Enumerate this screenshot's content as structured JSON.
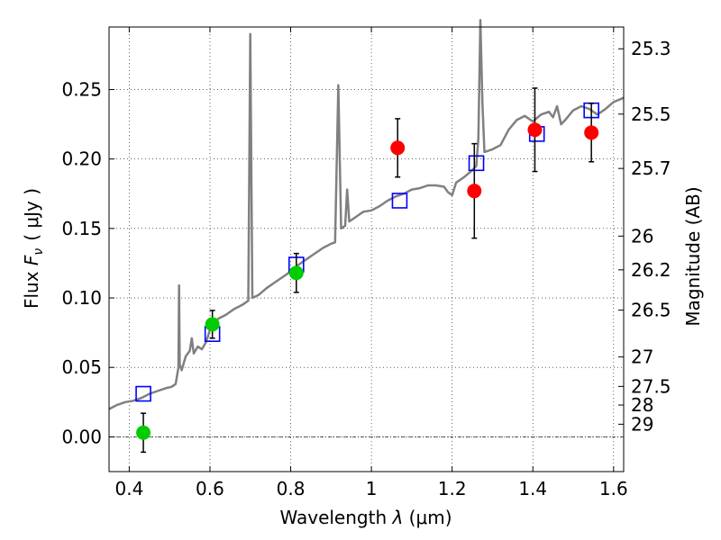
{
  "chart_data": {
    "type": "scatter",
    "xlabel_text": "Wavelength ",
    "xlabel_symbol": "λ",
    "xlabel_unit": " (μm)",
    "ylabel_text": "Flux ",
    "ylabel_symbol": "F",
    "ylabel_sub": "ν",
    "ylabel_unit": "( μJy )",
    "y2label": "Magnitude (AB)",
    "xlim": [
      0.35,
      1.625
    ],
    "ylim": [
      -0.025,
      0.295
    ],
    "x_ticks": [
      {
        "value": 0.4,
        "label": "0.4"
      },
      {
        "value": 0.6,
        "label": "0.6"
      },
      {
        "value": 0.8,
        "label": "0.8"
      },
      {
        "value": 1.0,
        "label": "1"
      },
      {
        "value": 1.2,
        "label": "1.2"
      },
      {
        "value": 1.4,
        "label": "1.4"
      },
      {
        "value": 1.6,
        "label": "1.6"
      }
    ],
    "y_ticks": [
      {
        "value": 0.0,
        "label": "0.00"
      },
      {
        "value": 0.05,
        "label": "0.05"
      },
      {
        "value": 0.1,
        "label": "0.10"
      },
      {
        "value": 0.15,
        "label": "0.15"
      },
      {
        "value": 0.2,
        "label": "0.20"
      },
      {
        "value": 0.25,
        "label": "0.25"
      }
    ],
    "y2_ticks": [
      {
        "flux": 0.2793,
        "label": "25.3"
      },
      {
        "flux": 0.2323,
        "label": "25.5"
      },
      {
        "flux": 0.1932,
        "label": "25.7"
      },
      {
        "flux": 0.1445,
        "label": "26"
      },
      {
        "flux": 0.1202,
        "label": "26.2"
      },
      {
        "flux": 0.0912,
        "label": "26.5"
      },
      {
        "flux": 0.0575,
        "label": "27"
      },
      {
        "flux": 0.0363,
        "label": "27.5"
      },
      {
        "flux": 0.0229,
        "label": "28"
      },
      {
        "flux": 0.0091,
        "label": "29"
      }
    ],
    "model_spectrum": {
      "color": "#808080",
      "points": [
        [
          0.35,
          0.02
        ],
        [
          0.37,
          0.023
        ],
        [
          0.39,
          0.025
        ],
        [
          0.41,
          0.026
        ],
        [
          0.43,
          0.028
        ],
        [
          0.45,
          0.031
        ],
        [
          0.47,
          0.033
        ],
        [
          0.49,
          0.035
        ],
        [
          0.505,
          0.036
        ],
        [
          0.515,
          0.038
        ],
        [
          0.522,
          0.05
        ],
        [
          0.5235,
          0.109
        ],
        [
          0.525,
          0.052
        ],
        [
          0.53,
          0.048
        ],
        [
          0.54,
          0.058
        ],
        [
          0.55,
          0.062
        ],
        [
          0.555,
          0.071
        ],
        [
          0.56,
          0.06
        ],
        [
          0.57,
          0.065
        ],
        [
          0.58,
          0.063
        ],
        [
          0.59,
          0.068
        ],
        [
          0.6,
          0.077
        ],
        [
          0.62,
          0.085
        ],
        [
          0.64,
          0.088
        ],
        [
          0.66,
          0.092
        ],
        [
          0.68,
          0.095
        ],
        [
          0.695,
          0.098
        ],
        [
          0.7,
          0.29
        ],
        [
          0.705,
          0.1
        ],
        [
          0.72,
          0.102
        ],
        [
          0.74,
          0.107
        ],
        [
          0.76,
          0.111
        ],
        [
          0.78,
          0.115
        ],
        [
          0.8,
          0.119
        ],
        [
          0.82,
          0.124
        ],
        [
          0.84,
          0.128
        ],
        [
          0.86,
          0.132
        ],
        [
          0.88,
          0.136
        ],
        [
          0.9,
          0.139
        ],
        [
          0.91,
          0.14
        ],
        [
          0.918,
          0.253
        ],
        [
          0.925,
          0.15
        ],
        [
          0.935,
          0.152
        ],
        [
          0.94,
          0.178
        ],
        [
          0.945,
          0.155
        ],
        [
          0.96,
          0.158
        ],
        [
          0.98,
          0.162
        ],
        [
          1.0,
          0.163
        ],
        [
          1.02,
          0.166
        ],
        [
          1.04,
          0.17
        ],
        [
          1.06,
          0.173
        ],
        [
          1.08,
          0.175
        ],
        [
          1.1,
          0.178
        ],
        [
          1.12,
          0.179
        ],
        [
          1.14,
          0.181
        ],
        [
          1.16,
          0.181
        ],
        [
          1.18,
          0.18
        ],
        [
          1.19,
          0.176
        ],
        [
          1.2,
          0.174
        ],
        [
          1.21,
          0.183
        ],
        [
          1.23,
          0.187
        ],
        [
          1.25,
          0.192
        ],
        [
          1.26,
          0.195
        ],
        [
          1.265,
          0.215
        ],
        [
          1.27,
          0.3
        ],
        [
          1.275,
          0.24
        ],
        [
          1.28,
          0.205
        ],
        [
          1.3,
          0.207
        ],
        [
          1.32,
          0.21
        ],
        [
          1.34,
          0.221
        ],
        [
          1.36,
          0.228
        ],
        [
          1.38,
          0.231
        ],
        [
          1.4,
          0.227
        ],
        [
          1.42,
          0.232
        ],
        [
          1.44,
          0.234
        ],
        [
          1.45,
          0.23
        ],
        [
          1.46,
          0.238
        ],
        [
          1.47,
          0.225
        ],
        [
          1.48,
          0.228
        ],
        [
          1.5,
          0.235
        ],
        [
          1.52,
          0.238
        ],
        [
          1.54,
          0.236
        ],
        [
          1.56,
          0.232
        ],
        [
          1.58,
          0.236
        ],
        [
          1.6,
          0.241
        ],
        [
          1.625,
          0.244
        ]
      ]
    },
    "model_photometry": {
      "color": "#0000ff",
      "points": [
        {
          "x": 0.435,
          "y": 0.031
        },
        {
          "x": 0.606,
          "y": 0.074
        },
        {
          "x": 0.814,
          "y": 0.124
        },
        {
          "x": 1.07,
          "y": 0.17
        },
        {
          "x": 1.26,
          "y": 0.197
        },
        {
          "x": 1.41,
          "y": 0.218
        },
        {
          "x": 1.545,
          "y": 0.235
        }
      ]
    },
    "observed_optical": {
      "color": "#00cc00",
      "points": [
        {
          "x": 0.435,
          "y": 0.003,
          "err": 0.014
        },
        {
          "x": 0.606,
          "y": 0.081,
          "err": 0.01
        },
        {
          "x": 0.814,
          "y": 0.118,
          "err": 0.014
        }
      ]
    },
    "observed_nir": {
      "color": "#ff0000",
      "points": [
        {
          "x": 1.065,
          "y": 0.208,
          "err": 0.021
        },
        {
          "x": 1.255,
          "y": 0.177,
          "err": 0.034
        },
        {
          "x": 1.405,
          "y": 0.221,
          "err": 0.03
        },
        {
          "x": 1.545,
          "y": 0.219,
          "err": 0.021
        }
      ]
    },
    "reference_line_y": 0.0,
    "grid": true
  }
}
